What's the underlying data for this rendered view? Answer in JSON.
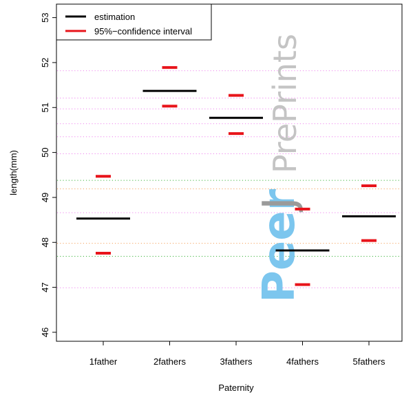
{
  "chart_data": {
    "type": "interval",
    "xlabel": "Paternity",
    "ylabel": "length(mm)",
    "categories": [
      "1father",
      "2fathers",
      "3fathers",
      "4fathers",
      "5fathers"
    ],
    "ylim": [
      45.8,
      53.3
    ],
    "yticks": [
      46,
      47,
      48,
      49,
      50,
      51,
      52,
      53
    ],
    "series": [
      {
        "name": "estimation",
        "color": "#000000",
        "values": [
          48.53,
          51.37,
          50.77,
          47.82,
          48.58
        ]
      },
      {
        "name": "95%−confidence interval",
        "color": "#e8141b",
        "lower": [
          47.76,
          51.03,
          50.42,
          47.06,
          48.04
        ],
        "upper": [
          49.47,
          51.89,
          51.27,
          48.74,
          49.26
        ]
      }
    ],
    "reference_lines": [
      {
        "y": 51.82,
        "color": "#ee82ee"
      },
      {
        "y": 51.21,
        "color": "#ee82ee"
      },
      {
        "y": 50.97,
        "color": "#ee82ee"
      },
      {
        "y": 50.64,
        "color": "#ee82ee"
      },
      {
        "y": 50.35,
        "color": "#ee82ee"
      },
      {
        "y": 49.97,
        "color": "#ee82ee"
      },
      {
        "y": 49.38,
        "color": "#3cb43c"
      },
      {
        "y": 49.19,
        "color": "#f5a05a"
      },
      {
        "y": 48.66,
        "color": "#ee82ee"
      },
      {
        "y": 47.98,
        "color": "#f5a05a"
      },
      {
        "y": 47.69,
        "color": "#3cb43c"
      },
      {
        "y": 46.99,
        "color": "#ee82ee"
      }
    ],
    "legend": {
      "position": "top-left",
      "items": [
        {
          "label": "estimation",
          "color": "#000000"
        },
        {
          "label": "95%−confidence interval",
          "color": "#e8141b"
        }
      ]
    },
    "grid": false
  },
  "watermark": {
    "peer": "Peer",
    "j": "J",
    "preprints": "PrePrints"
  }
}
